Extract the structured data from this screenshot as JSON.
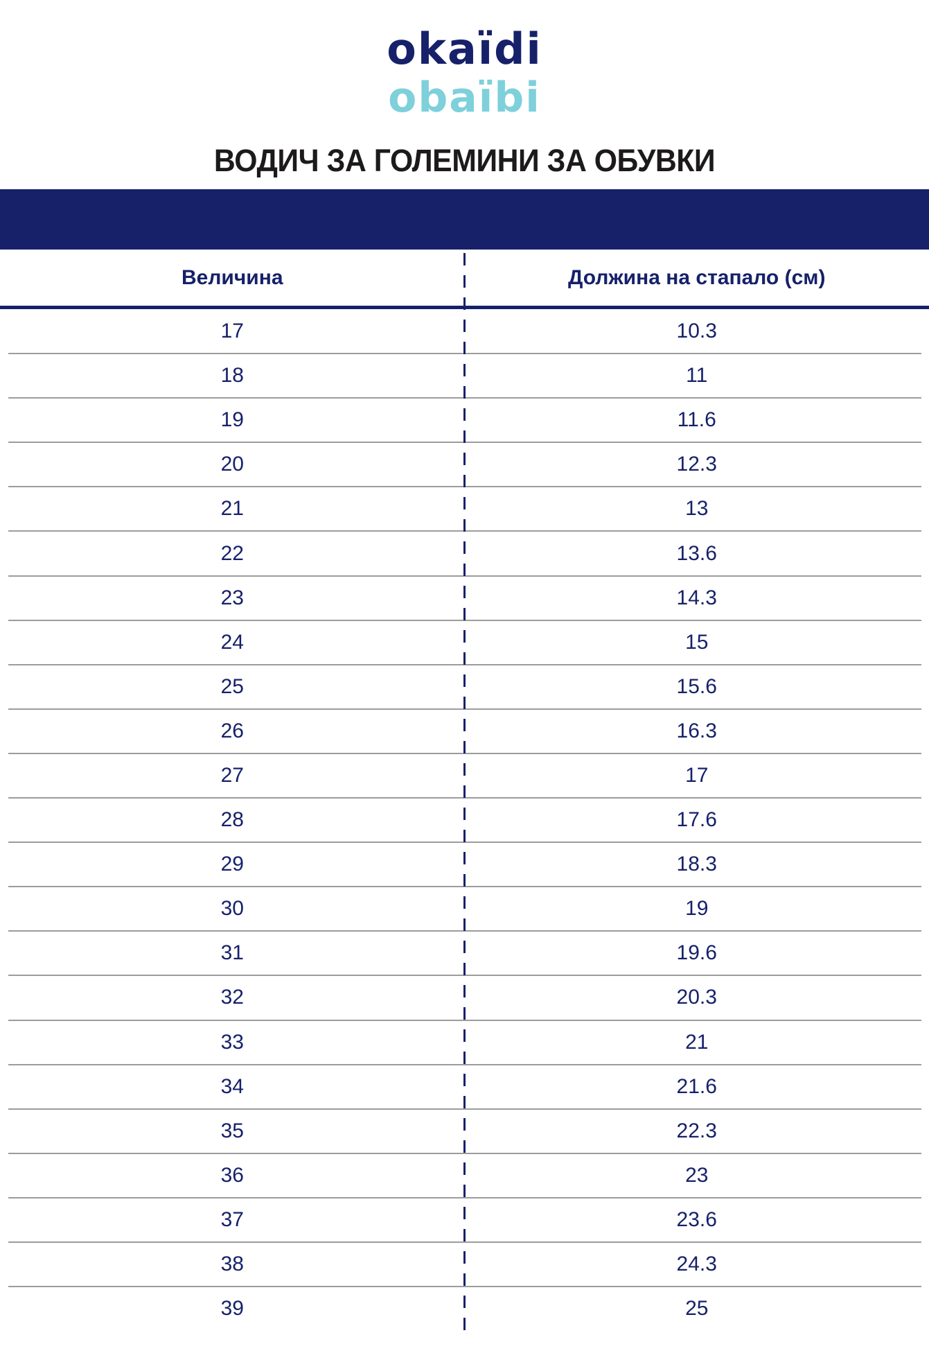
{
  "brand": {
    "line1": "okaïdi",
    "line2": "obaïbi"
  },
  "title": "ВОДИЧ ЗА ГОЛЕМИНИ ЗА ОБУВКИ",
  "table": {
    "headers": {
      "size": "Величина",
      "length": "Должина на стапало (см)"
    },
    "rows": [
      {
        "size": "17",
        "length": "10.3"
      },
      {
        "size": "18",
        "length": "11"
      },
      {
        "size": "19",
        "length": "11.6"
      },
      {
        "size": "20",
        "length": "12.3"
      },
      {
        "size": "21",
        "length": "13"
      },
      {
        "size": "22",
        "length": "13.6"
      },
      {
        "size": "23",
        "length": "14.3"
      },
      {
        "size": "24",
        "length": "15"
      },
      {
        "size": "25",
        "length": "15.6"
      },
      {
        "size": "26",
        "length": "16.3"
      },
      {
        "size": "27",
        "length": "17"
      },
      {
        "size": "28",
        "length": "17.6"
      },
      {
        "size": "29",
        "length": "18.3"
      },
      {
        "size": "30",
        "length": "19"
      },
      {
        "size": "31",
        "length": "19.6"
      },
      {
        "size": "32",
        "length": "20.3"
      },
      {
        "size": "33",
        "length": "21"
      },
      {
        "size": "34",
        "length": "21.6"
      },
      {
        "size": "35",
        "length": "22.3"
      },
      {
        "size": "36",
        "length": "23"
      },
      {
        "size": "37",
        "length": "23.6"
      },
      {
        "size": "38",
        "length": "24.3"
      },
      {
        "size": "39",
        "length": "25"
      }
    ]
  },
  "colors": {
    "navy": "#16216a",
    "cyan": "#7ed0db",
    "title_text": "#1d1a1b",
    "separator": "#9c9c9c",
    "background": "#ffffff"
  }
}
